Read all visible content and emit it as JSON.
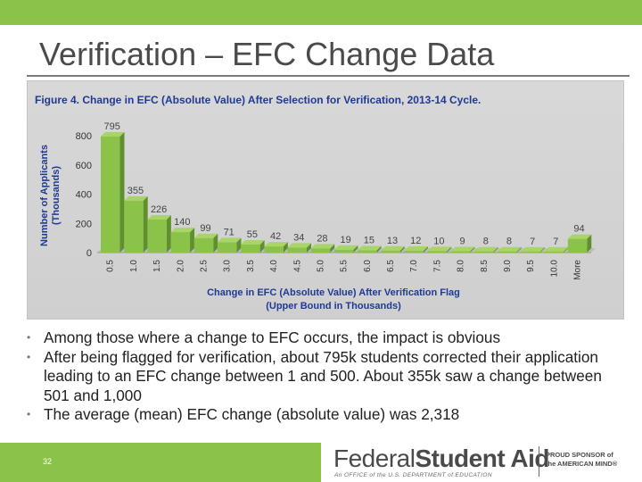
{
  "slide": {
    "title": "Verification – EFC Change Data",
    "number": "32"
  },
  "chart_data": {
    "type": "bar",
    "title": "Figure 4. Change in EFC (Absolute Value) After Selection for Verification, 2013-14 Cycle.",
    "xlabel": [
      "Change in EFC (Absolute Value) After Verification Flag",
      "(Upper Bound in Thousands)"
    ],
    "ylabel": [
      "Number of Applicants",
      "(Thousands)"
    ],
    "categories": [
      "0.5",
      "1.0",
      "1.5",
      "2.0",
      "2.5",
      "3.0",
      "3.5",
      "4.0",
      "4.5",
      "5.0",
      "5.5",
      "6.0",
      "6.5",
      "7.0",
      "7.5",
      "8.0",
      "8.5",
      "9.0",
      "9.5",
      "10.0",
      "More"
    ],
    "values": [
      795,
      355,
      226,
      140,
      99,
      71,
      55,
      42,
      34,
      28,
      19,
      15,
      13,
      12,
      10,
      9,
      8,
      8,
      7,
      7,
      94
    ],
    "ylim": [
      0,
      800
    ],
    "yticks": [
      0,
      200,
      400,
      600,
      800
    ],
    "bar_color": "#8bc34a",
    "grid": false,
    "legend": "none"
  },
  "bullets": [
    "Among those where a change to EFC occurs, the impact is obvious",
    "After being flagged for verification, about 795k students corrected their application leading to an EFC change between 1 and 500. About 355k saw a change between 501 and 1,000",
    "The average (mean) EFC change (absolute value) was 2,318"
  ],
  "footer": {
    "brand_light": "Federal",
    "brand_bold": "Student Aid",
    "tagline": "An OFFICE of the U.S. DEPARTMENT of EDUCATION",
    "sponsor_line1": "PROUD SPONSOR of",
    "sponsor_line2": "the AMERICAN MIND®"
  },
  "colors": {
    "accent_green": "#8bc34a",
    "chart_title": "#1f3a93",
    "axis_label": "#1f3a93"
  }
}
